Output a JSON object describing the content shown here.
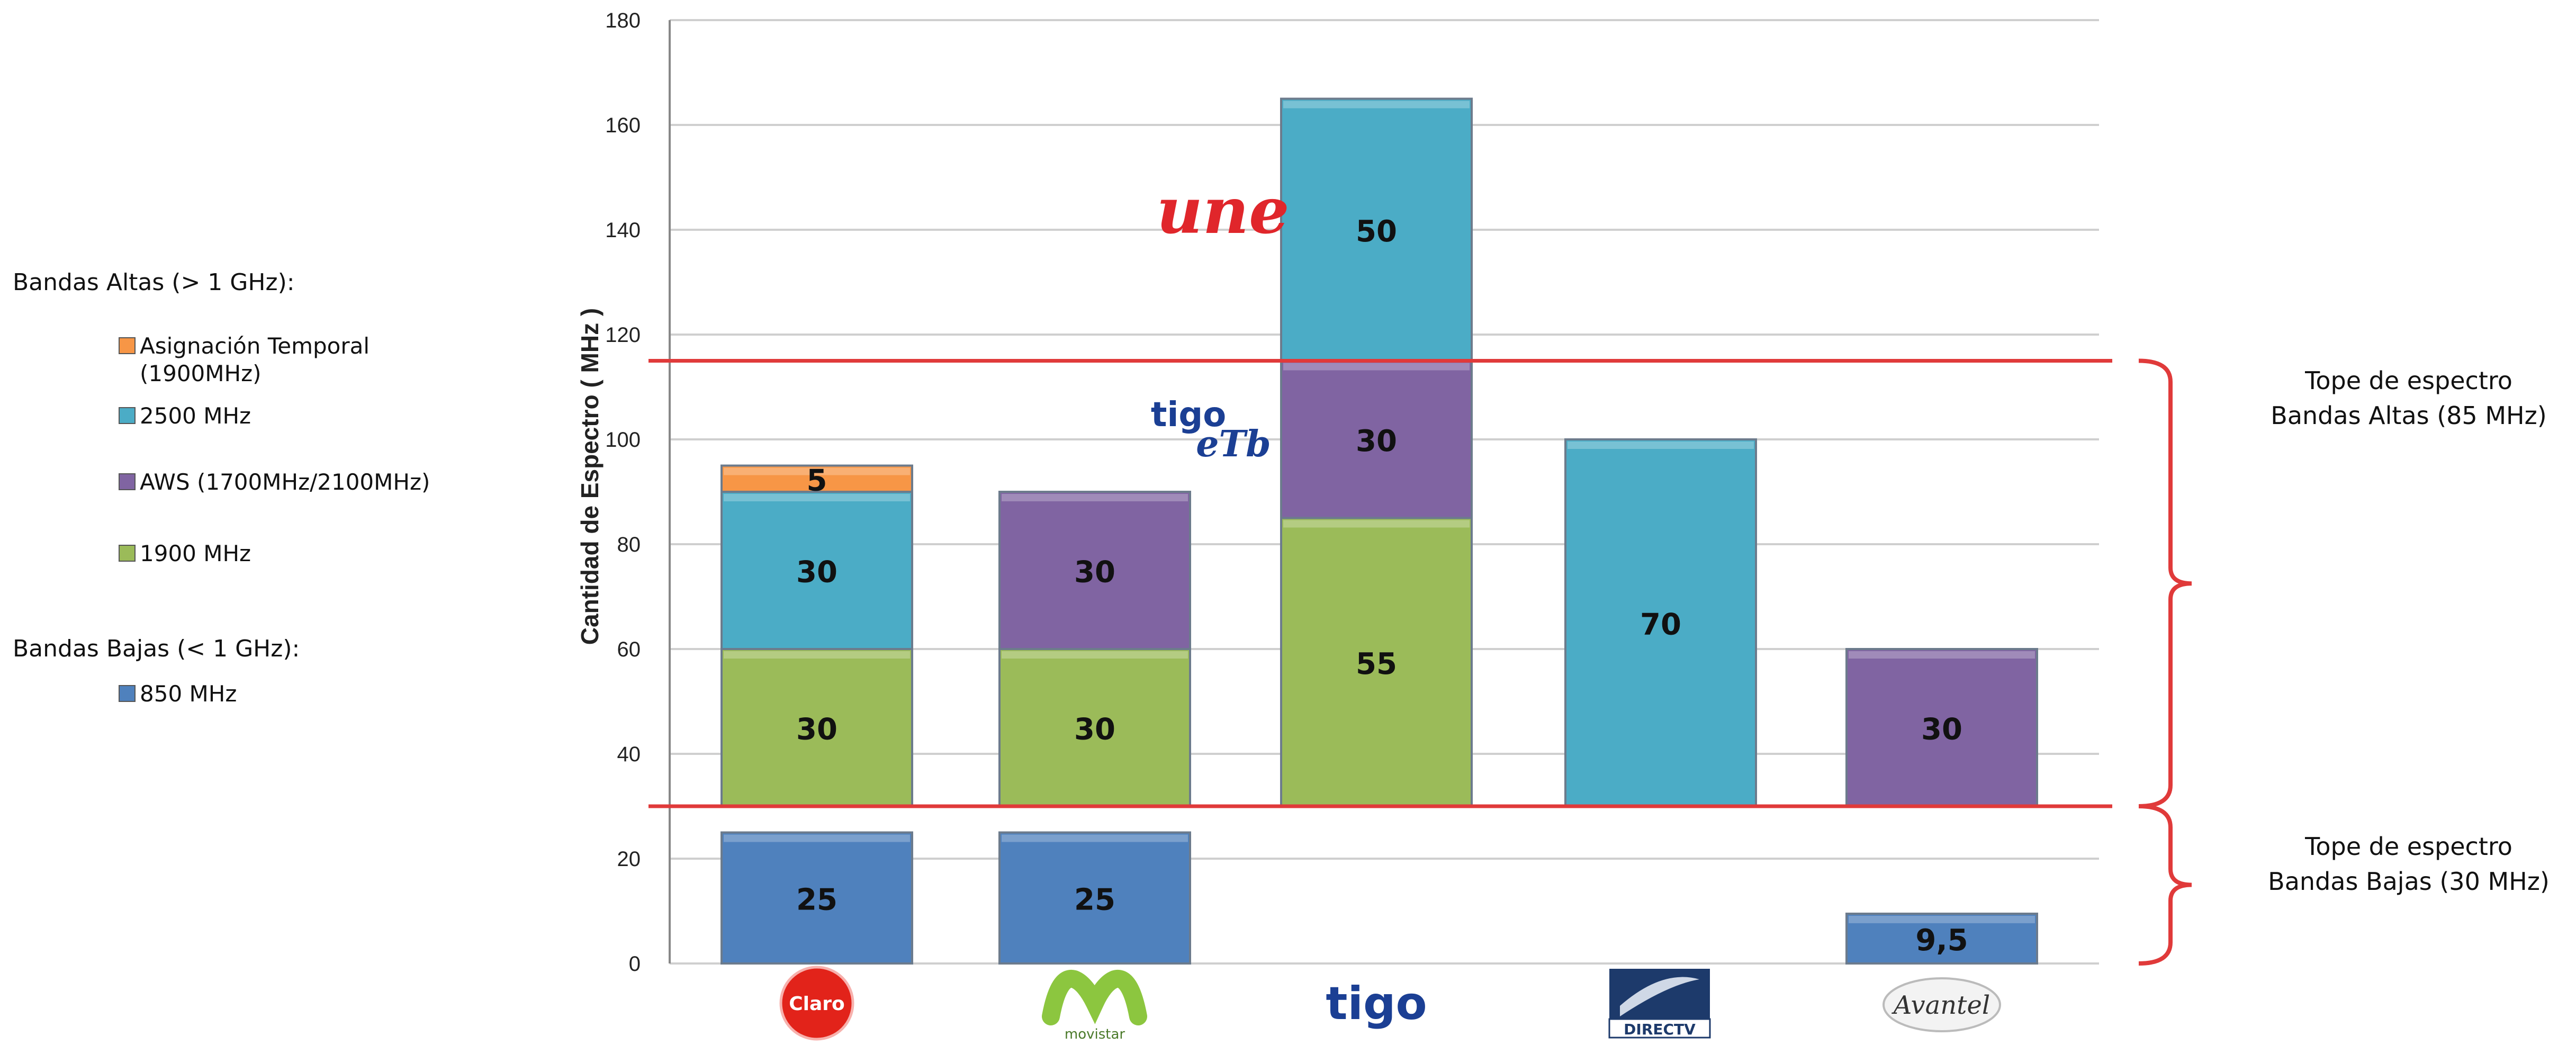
{
  "colors": {
    "band_850": "#4f81bd",
    "band_1900": "#9bbb59",
    "band_aws": "#8064a2",
    "band_2500": "#4bacc6",
    "band_temp": "#f79646",
    "cap_line": "#e03a3a",
    "grid": "#cfcfcf"
  },
  "legend": {
    "high_header": "Bandas Altas (> 1 GHz):",
    "low_header": "Bandas Bajas (< 1 GHz):",
    "items": [
      {
        "key": "temp",
        "lines": [
          "Asignación Temporal",
          "(1900MHz)"
        ],
        "color": "#f79646"
      },
      {
        "key": "2500",
        "lines": [
          "2500 MHz"
        ],
        "color": "#4bacc6"
      },
      {
        "key": "aws",
        "lines": [
          "AWS (1700MHz/2100MHz)"
        ],
        "color": "#8064a2"
      },
      {
        "key": "1900",
        "lines": [
          "1900 MHz"
        ],
        "color": "#9bbb59"
      },
      {
        "key": "850",
        "lines": [
          "850 MHz"
        ],
        "color": "#4f81bd"
      }
    ]
  },
  "annotations": {
    "high_cap": [
      "Tope de espectro",
      "Bandas Altas (85 MHz)"
    ],
    "low_cap": [
      "Tope de espectro",
      "Bandas Bajas (30 MHz)"
    ],
    "high_cap_value": 115,
    "low_cap_value": 30
  },
  "logos": [
    "Claro",
    "movistar",
    "tigo",
    "DIRECTV",
    "Avantel"
  ],
  "floating_logos": [
    "une",
    "tigo",
    "eTb"
  ],
  "chart_data": {
    "type": "bar",
    "stacked": true,
    "ylabel": "Cantidad de Espectro ( MHz )",
    "ylim": [
      0,
      180
    ],
    "yticks": [
      0,
      20,
      40,
      60,
      80,
      100,
      120,
      140,
      160,
      180
    ],
    "grid": true,
    "legend_position": "left",
    "bars": [
      {
        "category": "Claro",
        "segments": [
          {
            "band": "850 MHz",
            "start": 0,
            "value": 25,
            "label": "25"
          },
          {
            "band": "1900 MHz",
            "start": 30,
            "value": 30,
            "label": "30"
          },
          {
            "band": "2500 MHz",
            "start": 60,
            "value": 30,
            "label": "30"
          },
          {
            "band": "Asignación Temporal (1900MHz)",
            "start": 90,
            "value": 5,
            "label": "5"
          }
        ]
      },
      {
        "category": "Movistar",
        "segments": [
          {
            "band": "850 MHz",
            "start": 0,
            "value": 25,
            "label": "25"
          },
          {
            "band": "1900 MHz",
            "start": 30,
            "value": 30,
            "label": "30"
          },
          {
            "band": "AWS (1700MHz/2100MHz)",
            "start": 60,
            "value": 30,
            "label": "30"
          }
        ]
      },
      {
        "category": "Tigo",
        "segments": [
          {
            "band": "1900 MHz",
            "start": 30,
            "value": 55,
            "label": "55"
          },
          {
            "band": "AWS (1700MHz/2100MHz)",
            "start": 85,
            "value": 30,
            "label": "30"
          },
          {
            "band": "2500 MHz",
            "start": 115,
            "value": 50,
            "label": "50"
          }
        ]
      },
      {
        "category": "DirecTV",
        "segments": [
          {
            "band": "2500 MHz",
            "start": 30,
            "value": 70,
            "label": "70"
          }
        ]
      },
      {
        "category": "Avantel",
        "segments": [
          {
            "band": "850 MHz",
            "start": 0,
            "value": 9.5,
            "label": "9,5"
          },
          {
            "band": "AWS (1700MHz/2100MHz)",
            "start": 30,
            "value": 30,
            "label": "30"
          }
        ]
      }
    ]
  }
}
